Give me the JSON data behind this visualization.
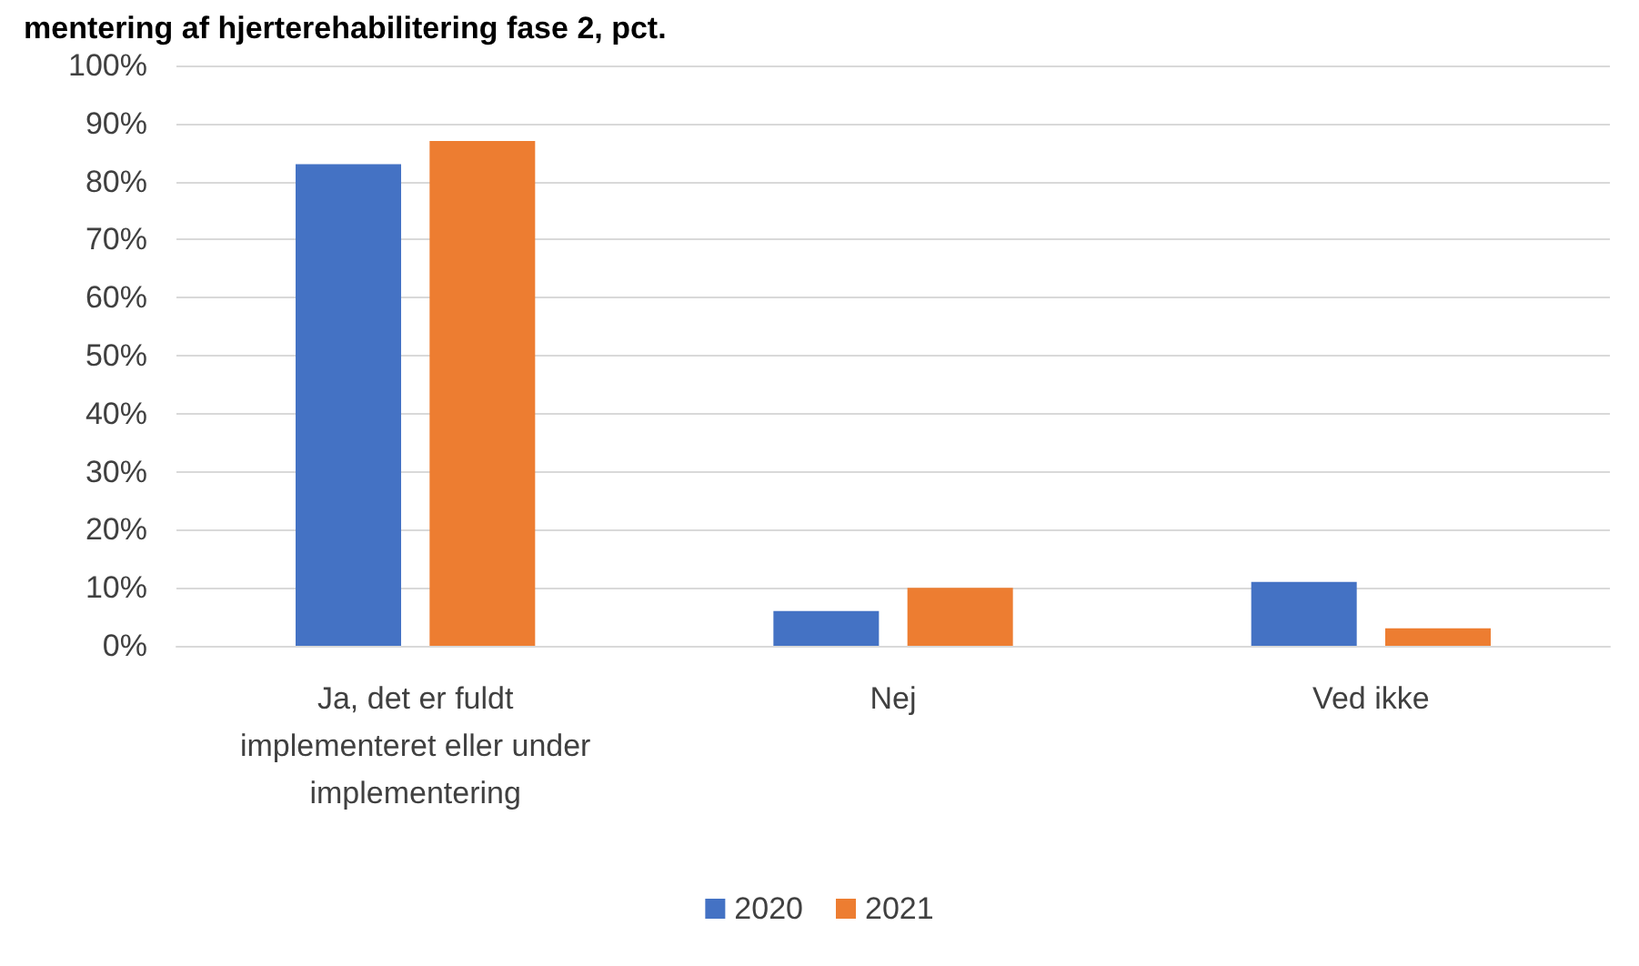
{
  "chart_data": {
    "type": "bar",
    "title": "mentering af hjerterehabilitering fase 2, pct.",
    "categories": [
      "Ja, det er fuldt\nimplementeret eller under\nimplementering",
      "Nej",
      "Ved ikke"
    ],
    "series": [
      {
        "name": "2020",
        "color": "#4472c4",
        "values": [
          83,
          6,
          11
        ]
      },
      {
        "name": "2021",
        "color": "#ed7d31",
        "values": [
          87,
          10,
          3
        ]
      }
    ],
    "ylim": [
      0,
      100
    ],
    "yticks": [
      {
        "value": 0,
        "label": "0%"
      },
      {
        "value": 10,
        "label": "10%"
      },
      {
        "value": 20,
        "label": "20%"
      },
      {
        "value": 30,
        "label": "30%"
      },
      {
        "value": 40,
        "label": "40%"
      },
      {
        "value": 50,
        "label": "50%"
      },
      {
        "value": 60,
        "label": "60%"
      },
      {
        "value": 70,
        "label": "70%"
      },
      {
        "value": 80,
        "label": "80%"
      },
      {
        "value": 90,
        "label": "90%"
      },
      {
        "value": 100,
        "label": "100%"
      }
    ],
    "grid": "y",
    "legend": "bottom"
  }
}
